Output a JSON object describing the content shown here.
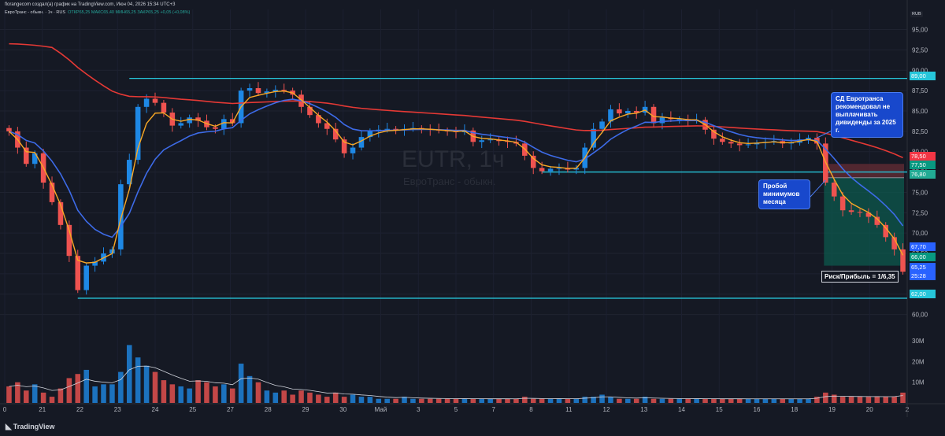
{
  "header": {
    "creator_line": "florangecom создал(а) график на TradingView.com, Июн 04, 2026 15:34 UTC+3",
    "symbol": "ЕвроТранс - обыкн. · 1ч · RUS",
    "ohlc": "ОТКР65,25  МАКС65,40  МИН65,25  ЗАКР65,25  +0,05 (+0,08%)",
    "currency": "RUB"
  },
  "watermark": {
    "ticker": "EUTR, 1ч",
    "name": "ЕвроТранс - обыкн."
  },
  "annotations": {
    "callout_dividends": "СД Евротранса рекомендовал не выплачивать дивиденды за 2025 г.",
    "callout_breakdown": "Пробой минимумов месяца",
    "risk_reward": "Риск/Прибыль = 1/6,35"
  },
  "price_labels": [
    {
      "text": "78,50",
      "color": "#f23645"
    },
    {
      "text": "77,50",
      "color": "#089981"
    },
    {
      "text": "76,80",
      "color": "#22ab94"
    },
    {
      "text": "67,70",
      "color": "#2962ff"
    },
    {
      "text": "66,00",
      "color": "#089981"
    },
    {
      "text": "65,25",
      "color": "#2962ff"
    },
    {
      "text": "25:28",
      "color": "#2962ff"
    },
    {
      "text": "62,00",
      "color": "#26c6da"
    },
    {
      "text": "89,00",
      "color": "#26c6da"
    }
  ],
  "branding": "TradingView",
  "colors": {
    "background": "#151924",
    "up": "#1e88e5",
    "down": "#ef5350",
    "ma_fast": "#f9a825",
    "ma_mid": "#3d6be8",
    "ma_slow": "#e53935",
    "level_line": "#26c6da",
    "profit_zone": "#0b5d50",
    "stop_zone": "#5c2a33"
  },
  "chart_data": {
    "type": "candlestick",
    "timeframe": "1ч",
    "yaxis": {
      "ticks": [
        95,
        92.5,
        90,
        87.5,
        85,
        82.5,
        80,
        77.5,
        75,
        72.5,
        70,
        67.5,
        65,
        62.5,
        60
      ],
      "tick_labels": [
        "95,00",
        "92,50",
        "90,00",
        "87,50",
        "85,00",
        "82,50",
        "80,00",
        "77,50",
        "75,00",
        "72,50",
        "70,00",
        "67,50",
        "65,00",
        "62,50",
        "60,00"
      ],
      "range": [
        59,
        96.5
      ]
    },
    "xaxis": {
      "tick_labels": [
        "0",
        "21",
        "22",
        "23",
        "24",
        "25",
        "27",
        "28",
        "29",
        "30",
        "Май",
        "3",
        "5",
        "7",
        "8",
        "11",
        "12",
        "13",
        "14",
        "15",
        "16",
        "18",
        "19",
        "20",
        "2"
      ]
    },
    "volume_axis": {
      "tick_labels": [
        "30M",
        "20M",
        "10M"
      ],
      "ticks": [
        30,
        20,
        10
      ]
    },
    "levels": [
      {
        "name": "resistance",
        "value": 89.0
      },
      {
        "name": "support",
        "value": 62.0
      },
      {
        "name": "month-low",
        "value": 77.5
      }
    ],
    "position": {
      "entry": 76.8,
      "stop": 78.5,
      "target": 66.0
    },
    "close_series": [
      82.5,
      80.5,
      78.5,
      79.8,
      76.2,
      73.8,
      71.0,
      67.2,
      63.0,
      66.0,
      66.5,
      67.5,
      68.0,
      76.0,
      79.0,
      85.5,
      86.5,
      86.0,
      84.8,
      83.2,
      83.5,
      84.2,
      83.8,
      83.0,
      82.8,
      84.0,
      83.5,
      87.5,
      87.8,
      87.2,
      87.4,
      87.6,
      87.5,
      87.0,
      85.5,
      84.5,
      83.5,
      82.8,
      81.5,
      79.8,
      80.5,
      81.8,
      82.5,
      82.7,
      82.8,
      82.7,
      82.8,
      82.9,
      82.8,
      82.7,
      82.6,
      82.5,
      82.4,
      82.6,
      81.2,
      81.4,
      81.5,
      81.3,
      81.2,
      81.0,
      79.5,
      78.0,
      77.6,
      77.9,
      78.0,
      77.8,
      78.0,
      80.5,
      82.8,
      83.7,
      85.2,
      84.7,
      85.0,
      84.8,
      85.5,
      83.5,
      84.2,
      84.0,
      84.0,
      83.8,
      83.9,
      82.7,
      81.6,
      81.2,
      81.0,
      80.8,
      80.9,
      81.1,
      81.2,
      81.3,
      81.0,
      81.1,
      81.5,
      81.7,
      81.0,
      76.2,
      74.5,
      72.8,
      72.6,
      72.5,
      72.0,
      71.0,
      69.5,
      68.0,
      65.25
    ],
    "volume_series": [
      8,
      10,
      6,
      9,
      5,
      3,
      7,
      12,
      14,
      16,
      8,
      9,
      9,
      15,
      28,
      22,
      18,
      15,
      11,
      9,
      8,
      7,
      11,
      10,
      8,
      9,
      7,
      19,
      13,
      10,
      6,
      5,
      6,
      4,
      6,
      5,
      4,
      3,
      5,
      3,
      4,
      3,
      3,
      2,
      2,
      2,
      3,
      2,
      2,
      2,
      2,
      2,
      2,
      2,
      2,
      2,
      2,
      2,
      2,
      2,
      3,
      2,
      2,
      2,
      2,
      2,
      2,
      3,
      3,
      4,
      3,
      2,
      2,
      2,
      3,
      2,
      2,
      2,
      2,
      2,
      2,
      2,
      2,
      2,
      2,
      2,
      2,
      2,
      2,
      2,
      2,
      2,
      2,
      2,
      3,
      5,
      4,
      3,
      3,
      3,
      3,
      3,
      3,
      3,
      5
    ]
  }
}
